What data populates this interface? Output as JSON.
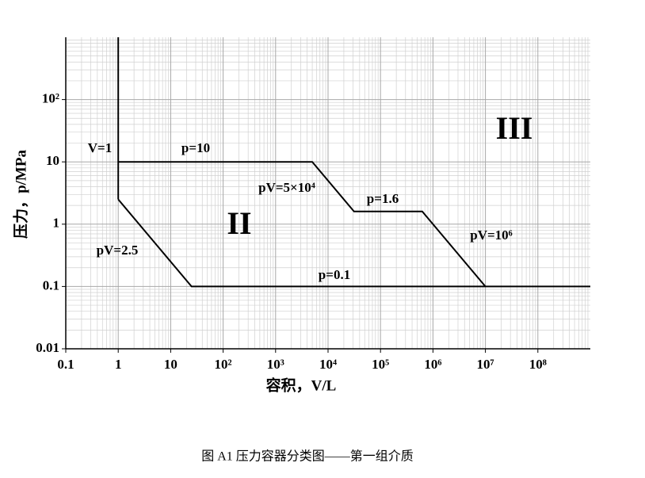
{
  "chart_data": {
    "type": "line",
    "log_x": true,
    "log_y": true,
    "grid": true,
    "minor_grid": true,
    "xlabel": "容积，V/L",
    "ylabel": "压力，p/MPa",
    "xlim": [
      0.1,
      1000000000
    ],
    "ylim": [
      0.01,
      1000
    ],
    "xticks": [
      0.1,
      1,
      10,
      {
        "value": 100,
        "label": "10²"
      },
      {
        "value": 1000,
        "label": "10³"
      },
      {
        "value": 10000,
        "label": "10⁴"
      },
      {
        "value": 100000,
        "label": "10⁵"
      },
      {
        "value": 1000000,
        "label": "10⁶"
      },
      {
        "value": 10000000,
        "label": "10⁷"
      },
      {
        "value": 100000000,
        "label": "10⁸"
      }
    ],
    "yticks": [
      0.01,
      0.1,
      1,
      10,
      {
        "value": 100,
        "label": "10²"
      }
    ],
    "series": [
      {
        "color": "#000000",
        "x": [
          1,
          1
        ],
        "values": [
          1000,
          2.5
        ]
      },
      {
        "color": "#000000",
        "x": [
          1,
          5000,
          31250,
          625000,
          10000000
        ],
        "values": [
          10,
          10,
          1.6,
          1.6,
          0.1
        ]
      },
      {
        "color": "#000000",
        "x": [
          1,
          25,
          1000000000
        ],
        "values": [
          2.5,
          0.1,
          0.1
        ]
      }
    ],
    "annotations": [
      "V=1",
      "p=10",
      "pV=5×10⁴",
      "p=1.6",
      "pV=10⁶",
      "pV=2.5",
      "p=0.1",
      "II",
      "III"
    ],
    "caption": "图 A1  压力容器分类图——第一组介质"
  }
}
